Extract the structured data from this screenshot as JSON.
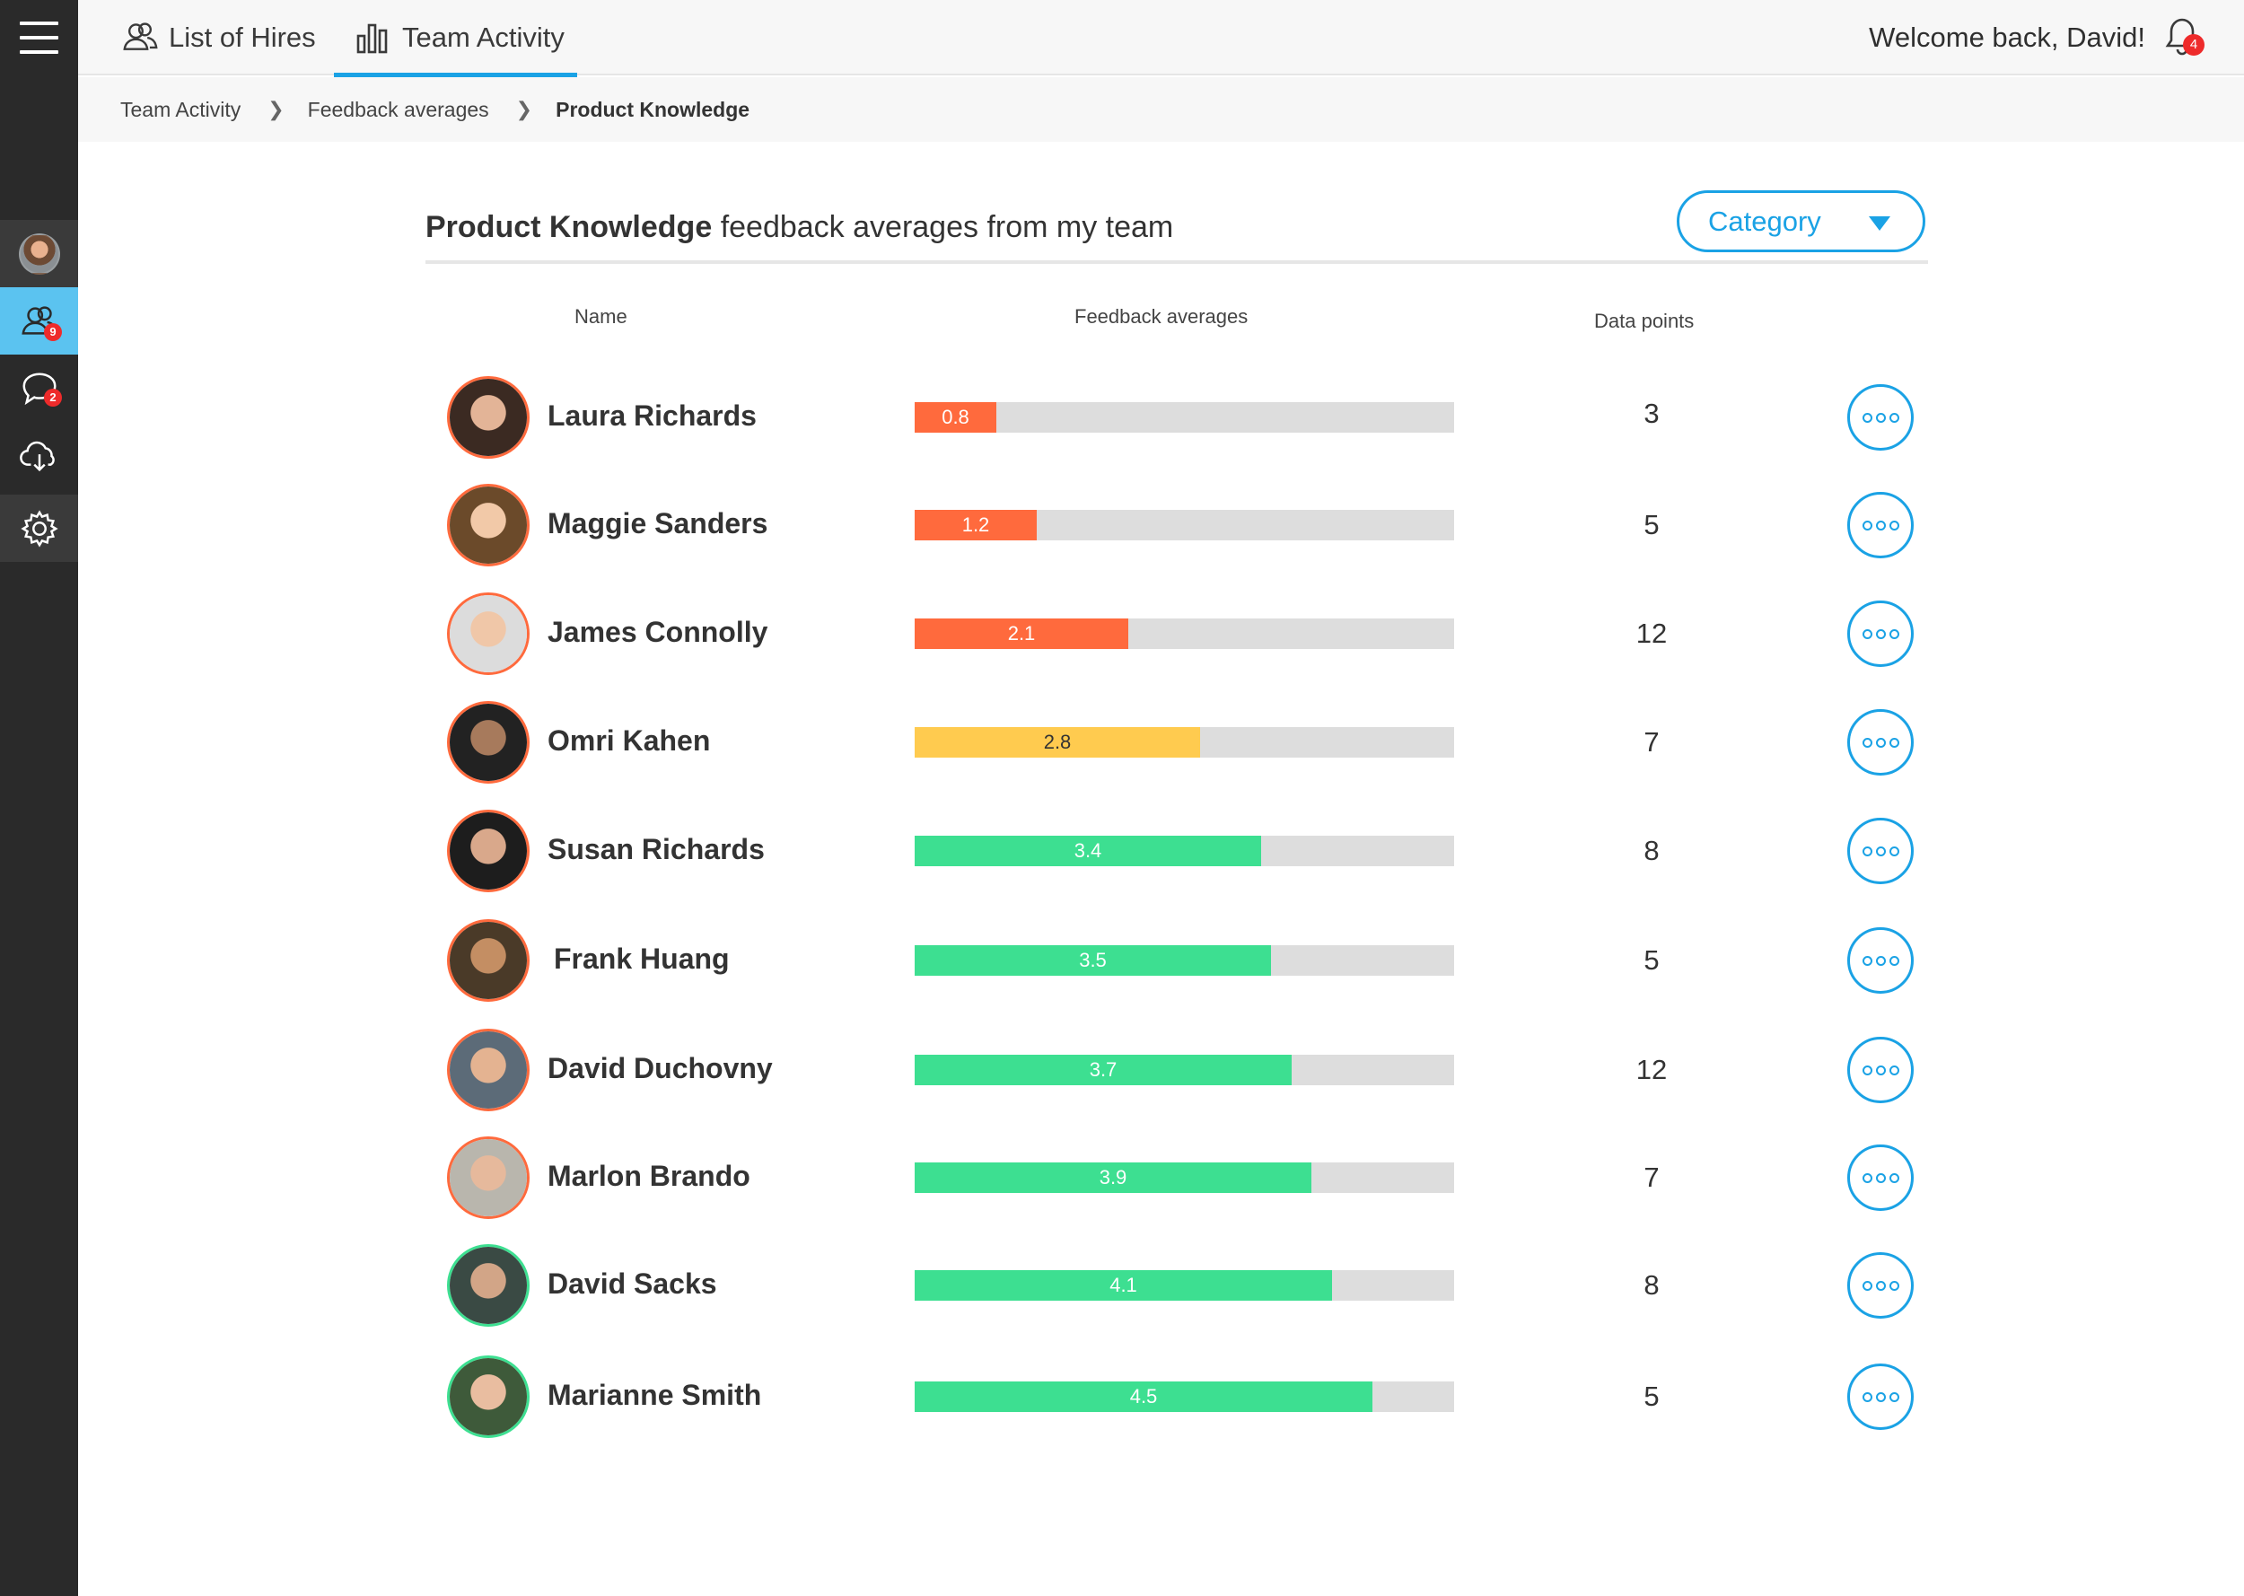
{
  "topbar": {
    "tabs": [
      {
        "label": "List of Hires",
        "icon": "users-icon"
      },
      {
        "label": "Team Activity",
        "icon": "bar-chart-icon",
        "active": true
      }
    ],
    "welcome": "Welcome back, David!",
    "notifications_count": "4"
  },
  "sidebar": {
    "items": [
      {
        "name": "profile",
        "icon": "avatar"
      },
      {
        "name": "team",
        "icon": "users-icon",
        "badge": "9",
        "active": true
      },
      {
        "name": "messages",
        "icon": "chat-bubble-icon",
        "badge": "2"
      },
      {
        "name": "download",
        "icon": "cloud-download-icon"
      },
      {
        "name": "settings",
        "icon": "gear-icon"
      }
    ]
  },
  "breadcrumb": {
    "items": [
      "Team Activity",
      "Feedback averages",
      "Product Knowledge"
    ],
    "separator": ">"
  },
  "heading": {
    "bold": "Product Knowledge",
    "rest": "feedback averages from my team"
  },
  "dropdown": {
    "label": "Category"
  },
  "columns": {
    "name": "Name",
    "feedback": "Feedback averages",
    "data_points": "Data points"
  },
  "colors": {
    "accent": "#1aa2e5",
    "low": "#ff6a3d",
    "mid": "#ffcb4f",
    "high": "#3ddf91",
    "track": "#dddddd"
  },
  "scale_max": 5.3,
  "rows": [
    {
      "name": "Laura Richards",
      "average": "0.8",
      "data_points": "3",
      "level": "low"
    },
    {
      "name": "Maggie Sanders",
      "average": "1.2",
      "data_points": "5",
      "level": "low"
    },
    {
      "name": "James Connolly",
      "average": "2.1",
      "data_points": "12",
      "level": "low"
    },
    {
      "name": "Omri Kahen",
      "average": "2.8",
      "data_points": "7",
      "level": "mid"
    },
    {
      "name": "Susan Richards",
      "average": "3.4",
      "data_points": "8",
      "level": "high"
    },
    {
      "name": "Frank Huang",
      "average": "3.5",
      "data_points": "5",
      "level": "high"
    },
    {
      "name": "David Duchovny",
      "average": "3.7",
      "data_points": "12",
      "level": "high"
    },
    {
      "name": "Marlon Brando",
      "average": "3.9",
      "data_points": "7",
      "level": "high"
    },
    {
      "name": "David Sacks",
      "average": "4.1",
      "data_points": "8",
      "level": "high"
    },
    {
      "name": "Marianne Smith",
      "average": "4.5",
      "data_points": "5",
      "level": "high"
    }
  ]
}
